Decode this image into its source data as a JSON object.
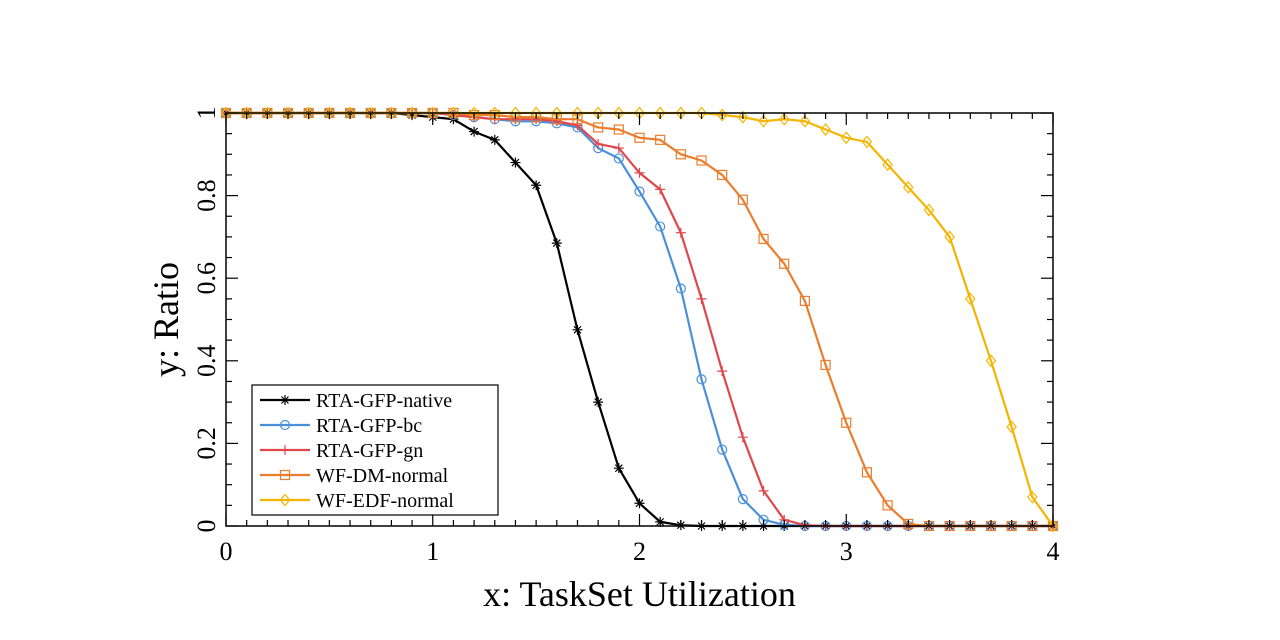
{
  "chart_data": {
    "type": "line",
    "title": "",
    "xlabel": "x: TaskSet Utilization",
    "ylabel": "y: Ratio",
    "xlim": [
      0,
      4
    ],
    "ylim": [
      0,
      1
    ],
    "xticks": [
      "0",
      "1",
      "2",
      "3",
      "4"
    ],
    "yticks": [
      "0",
      "0.2",
      "0.4",
      "0.6",
      "0.8",
      "1"
    ],
    "grid": false,
    "legend_position": "bottom-left",
    "x": [
      0,
      0.1,
      0.2,
      0.3,
      0.4,
      0.5,
      0.6,
      0.7,
      0.8,
      0.9,
      1.0,
      1.1,
      1.2,
      1.3,
      1.4,
      1.5,
      1.6,
      1.7,
      1.8,
      1.9,
      2.0,
      2.1,
      2.2,
      2.3,
      2.4,
      2.5,
      2.6,
      2.7,
      2.8,
      2.9,
      3.0,
      3.1,
      3.2,
      3.3,
      3.4,
      3.5,
      3.6,
      3.7,
      3.8,
      3.9,
      4.0
    ],
    "series": [
      {
        "name": "RTA-GFP-native",
        "color": "#000000",
        "marker": "star",
        "values": [
          1,
          1,
          1,
          1,
          1,
          1,
          1,
          1,
          1,
          0.995,
          0.99,
          0.985,
          0.955,
          0.935,
          0.88,
          0.825,
          0.685,
          0.475,
          0.3,
          0.14,
          0.055,
          0.01,
          0.002,
          0,
          0,
          0,
          0,
          0,
          0,
          0,
          0,
          0,
          0,
          0,
          0,
          0,
          0,
          0,
          0,
          0,
          0
        ]
      },
      {
        "name": "RTA-GFP-bc",
        "color": "#4a90d9",
        "marker": "circle",
        "values": [
          1,
          1,
          1,
          1,
          1,
          1,
          1,
          1,
          1,
          1,
          1,
          0.995,
          0.99,
          0.985,
          0.98,
          0.98,
          0.975,
          0.965,
          0.915,
          0.89,
          0.81,
          0.725,
          0.575,
          0.355,
          0.185,
          0.065,
          0.015,
          0.003,
          0,
          0,
          0,
          0,
          0,
          0,
          0,
          0,
          0,
          0,
          0,
          0,
          0
        ]
      },
      {
        "name": "RTA-GFP-gn",
        "color": "#e0474c",
        "marker": "plus",
        "values": [
          1,
          1,
          1,
          1,
          1,
          1,
          1,
          1,
          1,
          1,
          1,
          0.995,
          0.99,
          0.985,
          0.985,
          0.985,
          0.98,
          0.97,
          0.925,
          0.915,
          0.855,
          0.815,
          0.71,
          0.55,
          0.375,
          0.215,
          0.085,
          0.015,
          0.002,
          0,
          0,
          0,
          0,
          0,
          0,
          0,
          0,
          0,
          0,
          0,
          0
        ]
      },
      {
        "name": "WF-DM-normal",
        "color": "#ea7d2c",
        "marker": "square",
        "values": [
          1,
          1,
          1,
          1,
          1,
          1,
          1,
          1,
          1,
          1,
          1,
          1,
          0.995,
          0.995,
          0.99,
          0.99,
          0.985,
          0.985,
          0.965,
          0.96,
          0.94,
          0.935,
          0.9,
          0.885,
          0.85,
          0.79,
          0.695,
          0.635,
          0.545,
          0.39,
          0.25,
          0.13,
          0.05,
          0.005,
          0,
          0,
          0,
          0,
          0,
          0,
          0
        ]
      },
      {
        "name": "WF-EDF-normal",
        "color": "#f5b400",
        "marker": "diamond",
        "values": [
          1,
          1,
          1,
          1,
          1,
          1,
          1,
          1,
          1,
          1,
          1,
          1,
          1,
          1,
          1,
          1,
          1,
          1,
          1,
          1,
          1,
          1,
          1,
          1,
          0.995,
          0.99,
          0.98,
          0.985,
          0.98,
          0.96,
          0.94,
          0.93,
          0.875,
          0.82,
          0.765,
          0.7,
          0.55,
          0.4,
          0.24,
          0.07,
          0
        ]
      }
    ]
  }
}
